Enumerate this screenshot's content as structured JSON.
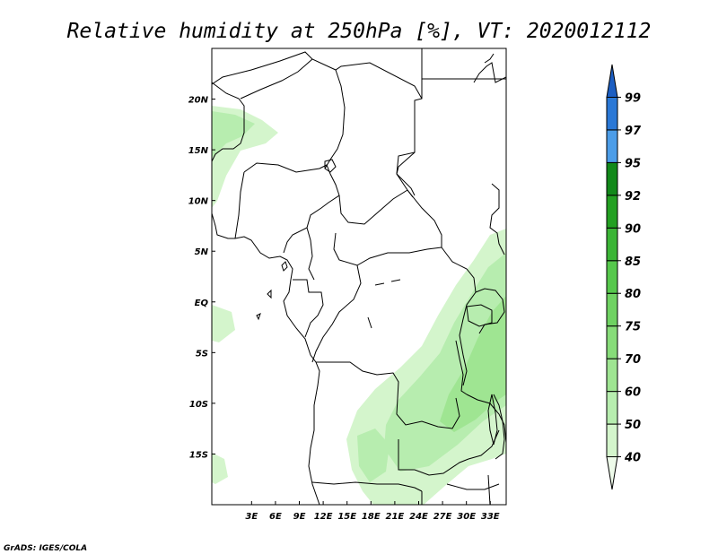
{
  "title": "Relative humidity at 250hPa [%], VT: 2020012112",
  "credit": "GrADS: IGES/COLA",
  "map": {
    "lon_range": [
      -2,
      35
    ],
    "lat_range": [
      -20,
      25
    ],
    "x_ticks": [
      "3E",
      "6E",
      "9E",
      "12E",
      "15E",
      "18E",
      "21E",
      "24E",
      "27E",
      "30E",
      "33E"
    ],
    "y_ticks": [
      "20N",
      "15N",
      "10N",
      "5N",
      "EQ",
      "5S",
      "10S",
      "15S"
    ],
    "variable": "Relative humidity",
    "level": "250hPa",
    "units": "%"
  },
  "colorbar": {
    "levels": [
      "40",
      "50",
      "60",
      "70",
      "75",
      "80",
      "85",
      "90",
      "92",
      "95",
      "97",
      "99"
    ],
    "colors": [
      "#eefbea",
      "#d4f5cc",
      "#b7edaf",
      "#9fe592",
      "#87dc79",
      "#6fd262",
      "#56c84c",
      "#3bb536",
      "#23a022",
      "#12891a",
      "#4c9de8",
      "#2a78d6",
      "#1c5ec2"
    ]
  }
}
